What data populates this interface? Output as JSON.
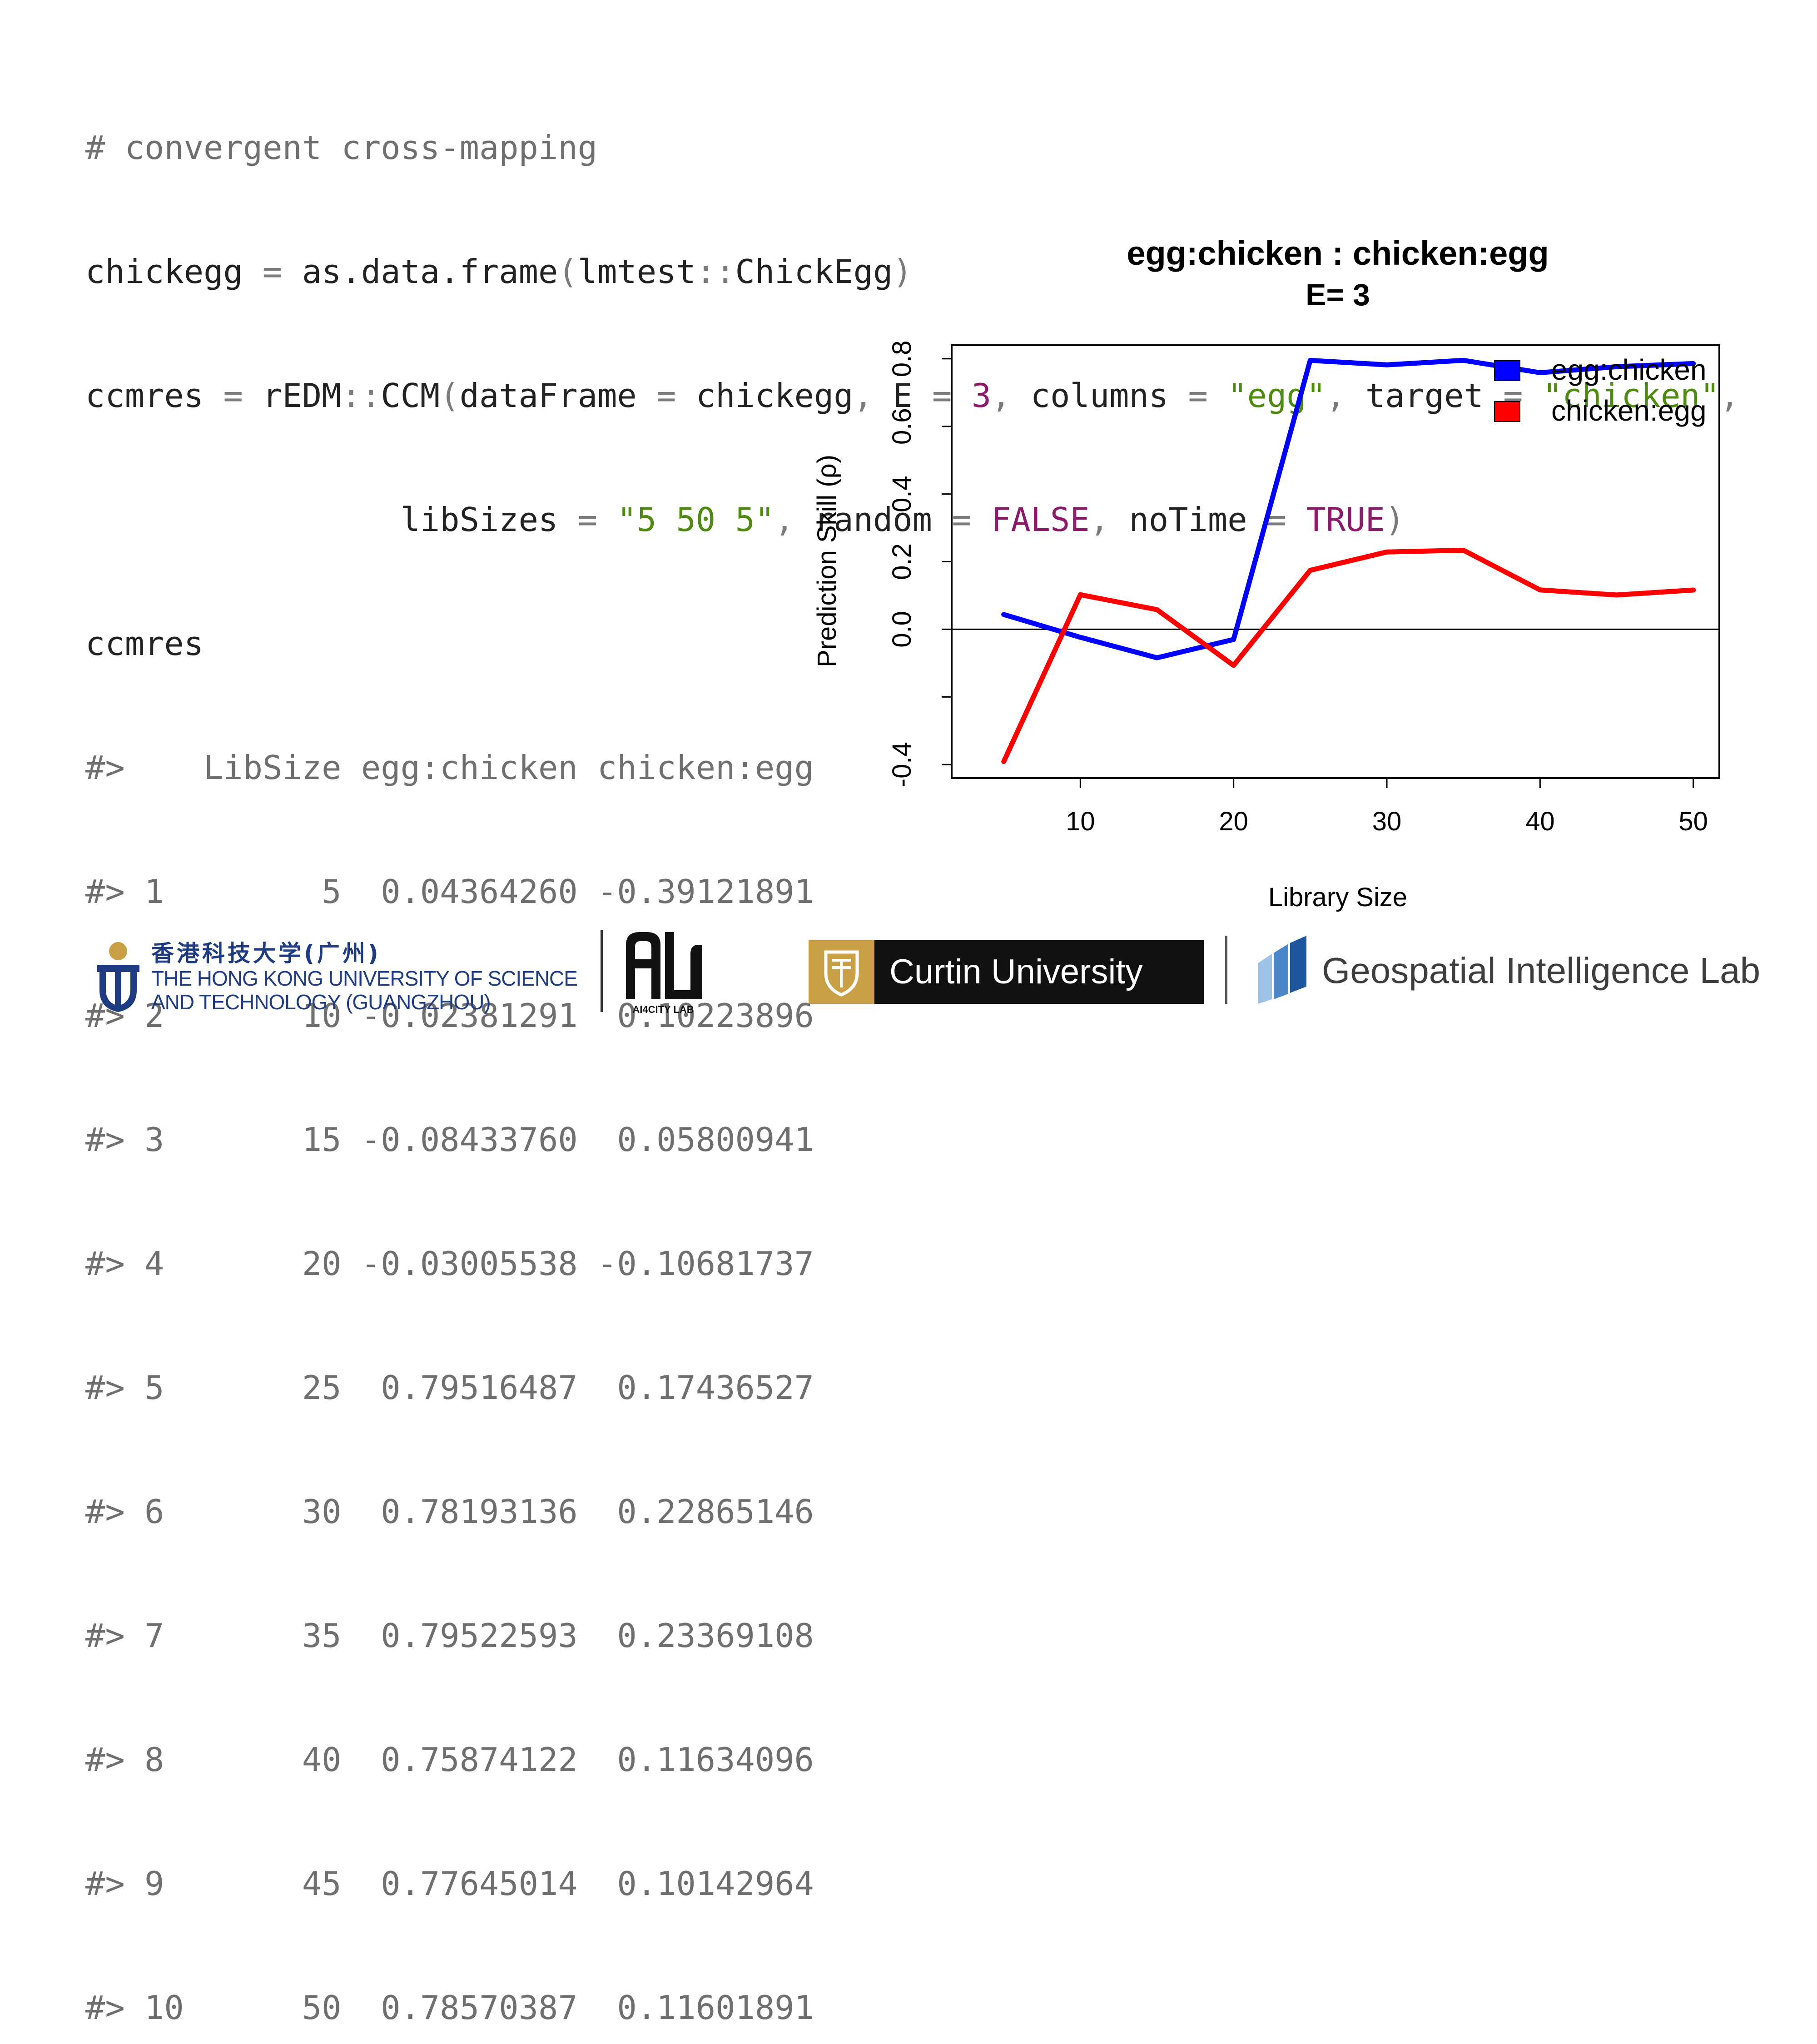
{
  "code": {
    "comment": "# convergent cross-mapping",
    "line2": {
      "var": "chickegg",
      "assign": " = ",
      "call": "as.data.frame",
      "open": "(",
      "pkg": "lmtest",
      "ns": "::",
      "obj": "ChickEgg",
      "close": ")"
    },
    "line3": {
      "var": "ccmres",
      "assign": " = ",
      "pkg": "rEDM",
      "ns": "::",
      "call": "CCM",
      "open": "(",
      "arg1": "dataFrame",
      "eq1": " = ",
      "val1": "chickegg",
      "comma1": ", ",
      "arg2": "E",
      "eq2": " = ",
      "val2": "3",
      "comma2": ", ",
      "arg3": "columns",
      "eq3": " = ",
      "val3": "\"egg\"",
      "comma3": ", ",
      "arg4": "target",
      "eq4": " = ",
      "val4": "\"chicken\"",
      "comma4": ","
    },
    "line4": {
      "indent": "                ",
      "arg5": "libSizes",
      "eq5": " = ",
      "val5": "\"5 50 5\"",
      "comma5": ", ",
      "arg6": "random",
      "eq6": " = ",
      "val6": "FALSE",
      "comma6": ", ",
      "arg7": "noTime",
      "eq7": " = ",
      "val7": "TRUE",
      "close": ")"
    },
    "line5": "ccmres",
    "output_header": "#>    LibSize egg:chicken chicken:egg",
    "output_rows": [
      "#> 1        5  0.04364260 -0.39121891",
      "#> 2       10 -0.02381291  0.10223896",
      "#> 3       15 -0.08433760  0.05800941",
      "#> 4       20 -0.03005538 -0.10681737",
      "#> 5       25  0.79516487  0.17436527",
      "#> 6       30  0.78193136  0.22865146",
      "#> 7       35  0.79522593  0.23369108",
      "#> 8       40  0.75874122  0.11634096",
      "#> 9       45  0.77645014  0.10142964",
      "#> 10      50  0.78570387  0.11601891"
    ]
  },
  "chart_data": {
    "type": "line",
    "title": "egg:chicken  :  chicken:egg",
    "subtitle": "E= 3",
    "xlabel": "Library Size",
    "ylabel": "Prediction Skill (ρ)",
    "x": [
      5,
      10,
      15,
      20,
      25,
      30,
      35,
      40,
      45,
      50
    ],
    "xlim": [
      1.6,
      51.7
    ],
    "ylim": [
      -0.44,
      0.84
    ],
    "xticks": [
      10,
      20,
      30,
      40,
      50
    ],
    "yticks": [
      -0.4,
      -0.2,
      0.0,
      0.2,
      0.4,
      0.6,
      0.8
    ],
    "ytick_labels": [
      "-0.4",
      "",
      "0.0",
      "0.2",
      "0.4",
      "0.6",
      "0.8"
    ],
    "hline": 0,
    "legend_position": "top-right",
    "grid": false,
    "series": [
      {
        "name": "egg:chicken",
        "color": "#0000ff",
        "values": [
          0.0436426,
          -0.02381291,
          -0.0843376,
          -0.03005538,
          0.79516487,
          0.78193136,
          0.79522593,
          0.75874122,
          0.77645014,
          0.78570387
        ]
      },
      {
        "name": "chicken:egg",
        "color": "#ff0000",
        "values": [
          -0.39121891,
          0.10223896,
          0.05800941,
          -0.10681737,
          0.17436527,
          0.22865146,
          0.23369108,
          0.11634096,
          0.10142964,
          0.11601891
        ]
      }
    ]
  },
  "footer": {
    "hkust_cn": "香港科技大学(广州)",
    "hkust_en1": "THE HONG KONG UNIVERSITY OF SCIENCE",
    "hkust_en2": "AND TECHNOLOGY (GUANGZHOU)",
    "ai4city_sub": "AI4CITY LAB",
    "curtin": "Curtin University",
    "geo": "Geospatial Intelligence Lab",
    "brand_hkust_color": "#1f3b82",
    "brand_curtin_gold": "#c9a046"
  }
}
